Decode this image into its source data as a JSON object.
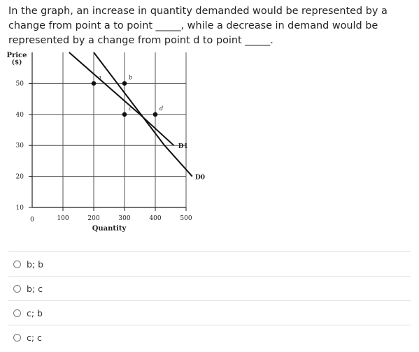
{
  "question": {
    "text": "In the graph, an increase in quantity demanded would be represented by a change from point a to point _____, while a decrease in demand would be represented by a change from point d to point _____."
  },
  "chart_data": {
    "type": "line",
    "ylabel_line1": "Price",
    "ylabel_line2": "($)",
    "xlabel": "Quantity",
    "x_ticks": [
      100,
      200,
      300,
      400,
      500
    ],
    "y_ticks": [
      10,
      20,
      30,
      40,
      50
    ],
    "origin_label": "0",
    "xlim": [
      0,
      500
    ],
    "ylim": [
      10,
      60
    ],
    "grid": true,
    "series": [
      {
        "name": "D1",
        "points": [
          [
            120,
            60
          ],
          [
            350,
            40
          ],
          [
            460,
            30
          ]
        ]
      },
      {
        "name": "D0",
        "points": [
          [
            200,
            60
          ],
          [
            430,
            30
          ],
          [
            520,
            20
          ]
        ]
      }
    ],
    "labels": [
      {
        "text": "D1",
        "x": 470,
        "y": 30
      },
      {
        "text": "D0",
        "x": 525,
        "y": 20
      }
    ],
    "points": [
      {
        "label": "a",
        "x": 200,
        "y": 50
      },
      {
        "label": "b",
        "x": 300,
        "y": 50
      },
      {
        "label": "c",
        "x": 300,
        "y": 40
      },
      {
        "label": "d",
        "x": 400,
        "y": 40
      }
    ]
  },
  "options": [
    {
      "label": "b; b"
    },
    {
      "label": "b; c"
    },
    {
      "label": "c; b"
    },
    {
      "label": "c; c"
    }
  ]
}
